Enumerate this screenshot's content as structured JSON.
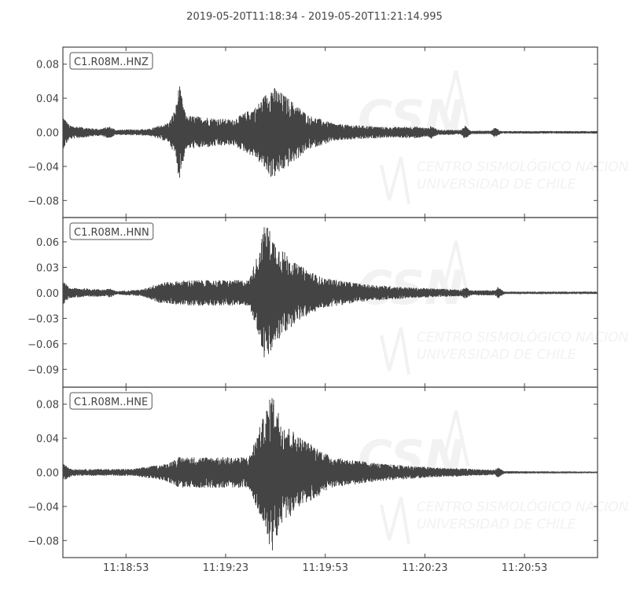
{
  "chart_data": {
    "type": "line",
    "title": "2019-05-20T11:18:34  -  2019-05-20T11:21:14.995",
    "start_time": "11:18:34",
    "end_time": "11:21:14.995",
    "x_tick_labels": [
      "11:18:53",
      "11:19:23",
      "11:19:53",
      "11:20:23",
      "11:20:53"
    ],
    "watermark": [
      "CSN",
      "CENTRO SISMOLÓGICO NACIONAL",
      "UNIVERSIDAD DE CHILE"
    ],
    "line_color": "#444444",
    "grid": false,
    "traces": [
      {
        "name": "C1.R08M..HNZ",
        "ylim": [
          -0.1,
          0.1
        ],
        "y_tick_values": [
          0.08,
          0.04,
          0.0,
          -0.04,
          -0.08
        ],
        "y_tick_labels": [
          "0.08",
          "0.04",
          "0.00",
          "−0.04",
          "−0.08"
        ],
        "envelope": [
          [
            "11:18:34",
            0.02
          ],
          [
            "11:18:36",
            0.008
          ],
          [
            "11:18:45",
            0.004
          ],
          [
            "11:18:48",
            0.007
          ],
          [
            "11:18:50",
            0.003
          ],
          [
            "11:19:00",
            0.004
          ],
          [
            "11:19:06",
            0.012
          ],
          [
            "11:19:08",
            0.03
          ],
          [
            "11:19:09",
            0.057
          ],
          [
            "11:19:11",
            0.02
          ],
          [
            "11:19:25",
            0.015
          ],
          [
            "11:19:32",
            0.03
          ],
          [
            "11:19:37",
            0.055
          ],
          [
            "11:19:42",
            0.04
          ],
          [
            "11:19:48",
            0.02
          ],
          [
            "11:19:56",
            0.01
          ],
          [
            "11:20:12",
            0.006
          ],
          [
            "11:20:20",
            0.007
          ],
          [
            "11:20:24",
            0.005
          ],
          [
            "11:20:25",
            0.008
          ],
          [
            "11:20:27",
            0.003
          ],
          [
            "11:20:34",
            0.003
          ],
          [
            "11:20:35",
            0.008
          ],
          [
            "11:20:37",
            0.002
          ],
          [
            "11:20:43",
            0.002
          ],
          [
            "11:20:44",
            0.006
          ],
          [
            "11:20:46",
            0.0015
          ],
          [
            "11:21:14.995",
            0.0015
          ]
        ]
      },
      {
        "name": "C1.R08M..HNN",
        "ylim": [
          -0.111,
          0.0886
        ],
        "y_tick_values": [
          0.06,
          0.03,
          0.0,
          -0.03,
          -0.06,
          -0.09
        ],
        "y_tick_labels": [
          "0.06",
          "0.03",
          "0.00",
          "−0.03",
          "−0.06",
          "−0.09"
        ],
        "envelope": [
          [
            "11:18:34",
            0.014
          ],
          [
            "11:18:36",
            0.006
          ],
          [
            "11:18:47",
            0.004
          ],
          [
            "11:18:48",
            0.006
          ],
          [
            "11:18:50",
            0.002
          ],
          [
            "11:18:58",
            0.004
          ],
          [
            "11:19:03",
            0.012
          ],
          [
            "11:19:12",
            0.015
          ],
          [
            "11:19:30",
            0.015
          ],
          [
            "11:19:33",
            0.05
          ],
          [
            "11:19:35",
            0.085
          ],
          [
            "11:19:38",
            0.06
          ],
          [
            "11:19:44",
            0.035
          ],
          [
            "11:19:52",
            0.018
          ],
          [
            "11:20:05",
            0.01
          ],
          [
            "11:20:20",
            0.006
          ],
          [
            "11:20:34",
            0.004
          ],
          [
            "11:20:35",
            0.007
          ],
          [
            "11:20:37",
            0.003
          ],
          [
            "11:20:44",
            0.003
          ],
          [
            "11:20:45",
            0.007
          ],
          [
            "11:20:47",
            0.0015
          ],
          [
            "11:21:14.995",
            0.0015
          ]
        ]
      },
      {
        "name": "C1.R08M..HNE",
        "ylim": [
          -0.1,
          0.1
        ],
        "y_tick_values": [
          0.08,
          0.04,
          0.0,
          -0.04,
          -0.08
        ],
        "y_tick_labels": [
          "0.08",
          "0.04",
          "0.00",
          "−0.04",
          "−0.08"
        ],
        "envelope": [
          [
            "11:18:34",
            0.01
          ],
          [
            "11:18:37",
            0.004
          ],
          [
            "11:18:55",
            0.004
          ],
          [
            "11:19:05",
            0.01
          ],
          [
            "11:19:09",
            0.018
          ],
          [
            "11:19:30",
            0.018
          ],
          [
            "11:19:33",
            0.05
          ],
          [
            "11:19:37",
            0.094
          ],
          [
            "11:19:40",
            0.06
          ],
          [
            "11:19:46",
            0.04
          ],
          [
            "11:19:55",
            0.018
          ],
          [
            "11:20:10",
            0.01
          ],
          [
            "11:20:25",
            0.006
          ],
          [
            "11:20:44",
            0.003
          ],
          [
            "11:20:45",
            0.006
          ],
          [
            "11:20:47",
            0.0015
          ],
          [
            "11:21:14.995",
            0.001
          ]
        ]
      }
    ]
  }
}
